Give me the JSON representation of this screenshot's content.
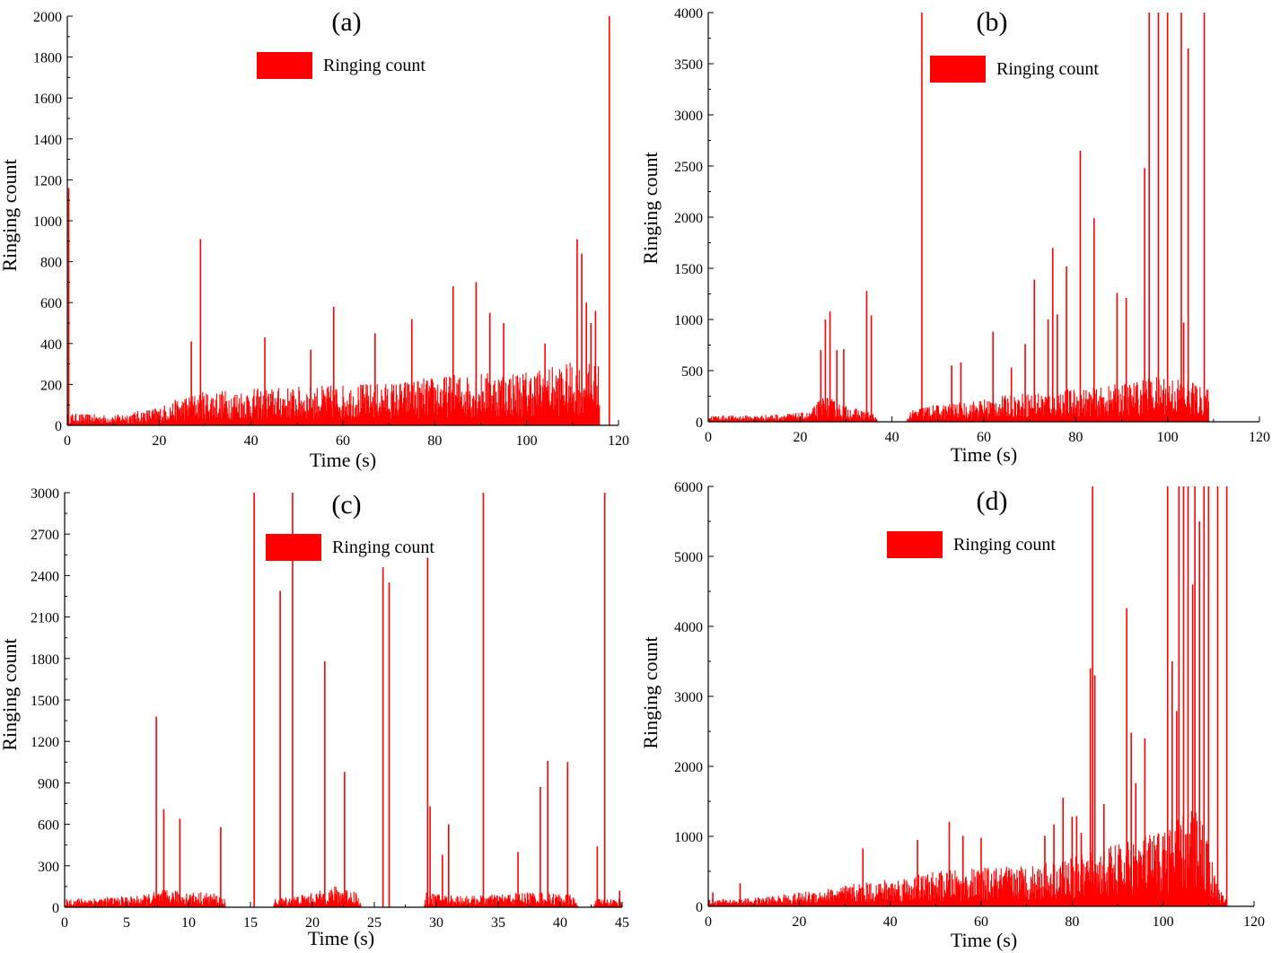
{
  "colors": {
    "series": "#ff0000",
    "axis": "#000000",
    "background": "#ffffff"
  },
  "chart_data": [
    {
      "panel": "(a)",
      "type": "bar",
      "xlabel": "Time (s)",
      "ylabel": "Ringing count",
      "xlim": [
        0,
        120
      ],
      "ylim": [
        0,
        2000
      ],
      "xticks": [
        0,
        20,
        40,
        60,
        80,
        100,
        120
      ],
      "yticks": [
        0,
        200,
        400,
        600,
        800,
        1000,
        1200,
        1400,
        1600,
        1800,
        2000
      ],
      "legend": "Ringing count",
      "data_end": 116,
      "background": [
        [
          0,
          60
        ],
        [
          10,
          50
        ],
        [
          20,
          90
        ],
        [
          25,
          140
        ],
        [
          30,
          170
        ],
        [
          40,
          180
        ],
        [
          50,
          190
        ],
        [
          60,
          200
        ],
        [
          70,
          210
        ],
        [
          80,
          240
        ],
        [
          90,
          260
        ],
        [
          100,
          270
        ],
        [
          110,
          310
        ],
        [
          116,
          300
        ]
      ],
      "background_max": 0.85,
      "spikes": [
        [
          0.3,
          1160
        ],
        [
          27,
          410
        ],
        [
          29,
          910
        ],
        [
          43,
          430
        ],
        [
          53,
          370
        ],
        [
          58,
          580
        ],
        [
          67,
          450
        ],
        [
          75,
          520
        ],
        [
          84,
          680
        ],
        [
          89,
          700
        ],
        [
          92,
          550
        ],
        [
          95,
          500
        ],
        [
          104,
          400
        ],
        [
          111,
          910
        ],
        [
          112,
          840
        ],
        [
          113,
          600
        ],
        [
          114,
          500
        ],
        [
          115,
          560
        ],
        [
          118,
          2000
        ]
      ]
    },
    {
      "panel": "(b)",
      "type": "bar",
      "xlabel": "Time (s)",
      "ylabel": "Ringing count",
      "xlim": [
        0,
        120
      ],
      "ylim": [
        0,
        4000
      ],
      "xticks": [
        0,
        20,
        40,
        60,
        80,
        100,
        120
      ],
      "yticks": [
        0,
        500,
        1000,
        1500,
        2000,
        2500,
        3000,
        3500,
        4000
      ],
      "legend": "Ringing count",
      "data_end": 109,
      "background": [
        [
          0,
          60
        ],
        [
          10,
          60
        ],
        [
          22,
          90
        ],
        [
          25,
          250
        ],
        [
          30,
          150
        ],
        [
          36,
          80
        ],
        [
          37,
          0
        ],
        [
          43,
          0
        ],
        [
          44,
          100
        ],
        [
          47,
          150
        ],
        [
          55,
          180
        ],
        [
          65,
          250
        ],
        [
          75,
          300
        ],
        [
          85,
          320
        ],
        [
          95,
          400
        ],
        [
          100,
          450
        ],
        [
          109,
          300
        ]
      ],
      "background_max": 0.9,
      "spikes": [
        [
          24.5,
          700
        ],
        [
          25.5,
          1000
        ],
        [
          26.5,
          1080
        ],
        [
          28,
          700
        ],
        [
          29.5,
          710
        ],
        [
          34.5,
          1280
        ],
        [
          35.5,
          1040
        ],
        [
          46.5,
          4000
        ],
        [
          53,
          550
        ],
        [
          55,
          580
        ],
        [
          62,
          880
        ],
        [
          66,
          530
        ],
        [
          69,
          760
        ],
        [
          71,
          1390
        ],
        [
          74,
          1000
        ],
        [
          75,
          1700
        ],
        [
          76,
          1050
        ],
        [
          78,
          1520
        ],
        [
          81,
          2650
        ],
        [
          84,
          1990
        ],
        [
          89,
          1260
        ],
        [
          91,
          1210
        ],
        [
          95,
          2480
        ],
        [
          96,
          4000
        ],
        [
          98,
          4000
        ],
        [
          100,
          4000
        ],
        [
          103,
          4000
        ],
        [
          103.5,
          970
        ],
        [
          104.5,
          3650
        ],
        [
          105.5,
          380
        ],
        [
          108,
          4000
        ]
      ]
    },
    {
      "panel": "(c)",
      "type": "bar",
      "xlabel": "Time (s)",
      "ylabel": "Ringing count",
      "xlim": [
        0,
        45
      ],
      "ylim": [
        0,
        3000
      ],
      "xticks": [
        0,
        5,
        10,
        15,
        20,
        25,
        30,
        35,
        40,
        45
      ],
      "yticks": [
        0,
        300,
        600,
        900,
        1200,
        1500,
        1800,
        2100,
        2400,
        2700,
        3000
      ],
      "legend": "Ringing count",
      "data_end": 45,
      "background": [
        [
          0,
          60
        ],
        [
          6,
          80
        ],
        [
          8,
          120
        ],
        [
          12,
          100
        ],
        [
          12.9,
          60
        ],
        [
          13,
          0
        ],
        [
          16.8,
          0
        ],
        [
          17,
          60
        ],
        [
          20,
          100
        ],
        [
          22,
          150
        ],
        [
          23.5,
          120
        ],
        [
          24,
          0
        ],
        [
          29,
          0
        ],
        [
          29.2,
          100
        ],
        [
          33,
          80
        ],
        [
          38,
          110
        ],
        [
          41,
          90
        ],
        [
          41.5,
          0
        ],
        [
          42.5,
          0
        ],
        [
          43,
          60
        ]
      ],
      "background_max": 0.9,
      "spikes": [
        [
          7.4,
          1380
        ],
        [
          8,
          710
        ],
        [
          9.3,
          640
        ],
        [
          12.6,
          580
        ],
        [
          15.3,
          3000
        ],
        [
          17.4,
          2290
        ],
        [
          18.4,
          3000
        ],
        [
          21,
          1780
        ],
        [
          22.6,
          980
        ],
        [
          25.7,
          2460
        ],
        [
          26.2,
          2350
        ],
        [
          29.3,
          2530
        ],
        [
          29.5,
          730
        ],
        [
          30.5,
          380
        ],
        [
          31,
          600
        ],
        [
          33.8,
          3000
        ],
        [
          36.6,
          400
        ],
        [
          38.4,
          870
        ],
        [
          39,
          1060
        ],
        [
          40.6,
          1050
        ],
        [
          43,
          440
        ],
        [
          43.6,
          3000
        ],
        [
          44.8,
          120
        ]
      ]
    },
    {
      "panel": "(d)",
      "type": "bar",
      "xlabel": "Time (s)",
      "ylabel": "Ringing count",
      "xlim": [
        0,
        120
      ],
      "ylim": [
        0,
        6000
      ],
      "xticks": [
        0,
        20,
        40,
        60,
        80,
        100,
        120
      ],
      "yticks": [
        0,
        1000,
        2000,
        3000,
        4000,
        5000,
        6000
      ],
      "legend": "Ringing count",
      "data_end": 114,
      "background": [
        [
          0,
          100
        ],
        [
          10,
          120
        ],
        [
          20,
          200
        ],
        [
          30,
          300
        ],
        [
          40,
          400
        ],
        [
          50,
          500
        ],
        [
          60,
          550
        ],
        [
          70,
          600
        ],
        [
          80,
          700
        ],
        [
          90,
          900
        ],
        [
          100,
          1100
        ],
        [
          108,
          1500
        ],
        [
          112,
          300
        ],
        [
          114,
          100
        ]
      ],
      "background_max": 0.85,
      "spikes": [
        [
          1,
          200
        ],
        [
          7,
          330
        ],
        [
          34,
          830
        ],
        [
          46,
          950
        ],
        [
          53,
          1210
        ],
        [
          56,
          1010
        ],
        [
          60,
          980
        ],
        [
          74,
          1010
        ],
        [
          76,
          1170
        ],
        [
          78,
          1550
        ],
        [
          80,
          1280
        ],
        [
          81,
          1290
        ],
        [
          82,
          1050
        ],
        [
          84,
          3400
        ],
        [
          84.5,
          6000
        ],
        [
          85,
          3300
        ],
        [
          87,
          1460
        ],
        [
          92,
          4260
        ],
        [
          93,
          2480
        ],
        [
          94,
          1760
        ],
        [
          96,
          2400
        ],
        [
          100,
          1000
        ],
        [
          101,
          6000
        ],
        [
          102,
          3500
        ],
        [
          103,
          2790
        ],
        [
          103.5,
          6000
        ],
        [
          104.5,
          6000
        ],
        [
          105.5,
          6000
        ],
        [
          106.5,
          4600
        ],
        [
          107,
          6000
        ],
        [
          108,
          5500
        ],
        [
          109,
          6000
        ],
        [
          110,
          6000
        ],
        [
          112,
          6000
        ],
        [
          114,
          6000
        ]
      ]
    }
  ]
}
